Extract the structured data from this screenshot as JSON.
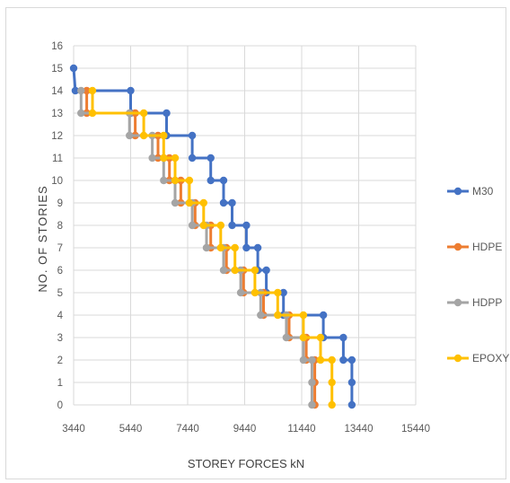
{
  "chart_data": {
    "type": "line",
    "title": "",
    "xlabel": "STOREY FORCES kN",
    "ylabel": "NO. OF STORIES",
    "xlim": [
      3440,
      15440
    ],
    "ylim": [
      0,
      16
    ],
    "xticks": [
      "3440",
      "5440",
      "7440",
      "9440",
      "11440",
      "13440",
      "15440"
    ],
    "yticks": [
      "0",
      "1",
      "2",
      "3",
      "4",
      "5",
      "6",
      "7",
      "8",
      "9",
      "10",
      "11",
      "12",
      "13",
      "14",
      "15",
      "16"
    ],
    "grid": true,
    "legend_position": "right",
    "step_plot": true,
    "series": [
      {
        "name": "M30",
        "color": "#4472C4",
        "points": [
          [
            13200,
            0
          ],
          [
            13200,
            1
          ],
          [
            13200,
            2
          ],
          [
            12900,
            2
          ],
          [
            12900,
            3
          ],
          [
            12200,
            3
          ],
          [
            12200,
            4
          ],
          [
            10800,
            4
          ],
          [
            10800,
            5
          ],
          [
            10200,
            5
          ],
          [
            10200,
            6
          ],
          [
            9900,
            6
          ],
          [
            9900,
            7
          ],
          [
            9500,
            7
          ],
          [
            9500,
            8
          ],
          [
            9000,
            8
          ],
          [
            9000,
            9
          ],
          [
            8700,
            9
          ],
          [
            8700,
            10
          ],
          [
            8250,
            10
          ],
          [
            8250,
            11
          ],
          [
            7600,
            11
          ],
          [
            7600,
            12
          ],
          [
            6700,
            12
          ],
          [
            6700,
            13
          ],
          [
            5440,
            13
          ],
          [
            5440,
            14
          ],
          [
            3500,
            14
          ],
          [
            3440,
            15
          ]
        ]
      },
      {
        "name": "HDPE",
        "color": "#ED7D31",
        "points": [
          [
            11900,
            0
          ],
          [
            11900,
            1
          ],
          [
            11900,
            2
          ],
          [
            11600,
            2
          ],
          [
            11600,
            3
          ],
          [
            11000,
            3
          ],
          [
            11000,
            4
          ],
          [
            10100,
            4
          ],
          [
            10100,
            5
          ],
          [
            9400,
            5
          ],
          [
            9400,
            6
          ],
          [
            8800,
            6
          ],
          [
            8800,
            7
          ],
          [
            8250,
            7
          ],
          [
            8250,
            8
          ],
          [
            7700,
            8
          ],
          [
            7700,
            9
          ],
          [
            7200,
            9
          ],
          [
            7200,
            10
          ],
          [
            6800,
            10
          ],
          [
            6800,
            11
          ],
          [
            6400,
            11
          ],
          [
            6400,
            12
          ],
          [
            5600,
            12
          ],
          [
            5600,
            13
          ],
          [
            3900,
            13
          ],
          [
            3900,
            14
          ]
        ]
      },
      {
        "name": "HDPP",
        "color": "#A5A5A5",
        "points": [
          [
            11800,
            0
          ],
          [
            11800,
            1
          ],
          [
            11800,
            2
          ],
          [
            11500,
            2
          ],
          [
            11500,
            3
          ],
          [
            10900,
            3
          ],
          [
            10900,
            4
          ],
          [
            10000,
            4
          ],
          [
            10000,
            5
          ],
          [
            9300,
            5
          ],
          [
            9300,
            6
          ],
          [
            8700,
            6
          ],
          [
            8700,
            7
          ],
          [
            8100,
            7
          ],
          [
            8100,
            8
          ],
          [
            7600,
            8
          ],
          [
            7600,
            9
          ],
          [
            7000,
            9
          ],
          [
            7000,
            10
          ],
          [
            6600,
            10
          ],
          [
            6600,
            11
          ],
          [
            6200,
            11
          ],
          [
            6200,
            12
          ],
          [
            5400,
            12
          ],
          [
            5400,
            13
          ],
          [
            3700,
            13
          ],
          [
            3700,
            14
          ]
        ]
      },
      {
        "name": "EPOXY",
        "color": "#FFC000",
        "points": [
          [
            12500,
            0
          ],
          [
            12500,
            1
          ],
          [
            12500,
            2
          ],
          [
            12100,
            2
          ],
          [
            12100,
            3
          ],
          [
            11500,
            3
          ],
          [
            11500,
            4
          ],
          [
            10600,
            4
          ],
          [
            10600,
            5
          ],
          [
            9800,
            5
          ],
          [
            9800,
            6
          ],
          [
            9100,
            6
          ],
          [
            9100,
            7
          ],
          [
            8600,
            7
          ],
          [
            8600,
            8
          ],
          [
            8000,
            8
          ],
          [
            8000,
            9
          ],
          [
            7500,
            9
          ],
          [
            7500,
            10
          ],
          [
            7000,
            10
          ],
          [
            7000,
            11
          ],
          [
            6600,
            11
          ],
          [
            6600,
            12
          ],
          [
            5900,
            12
          ],
          [
            5900,
            13
          ],
          [
            4100,
            13
          ],
          [
            4100,
            14
          ]
        ]
      }
    ]
  }
}
